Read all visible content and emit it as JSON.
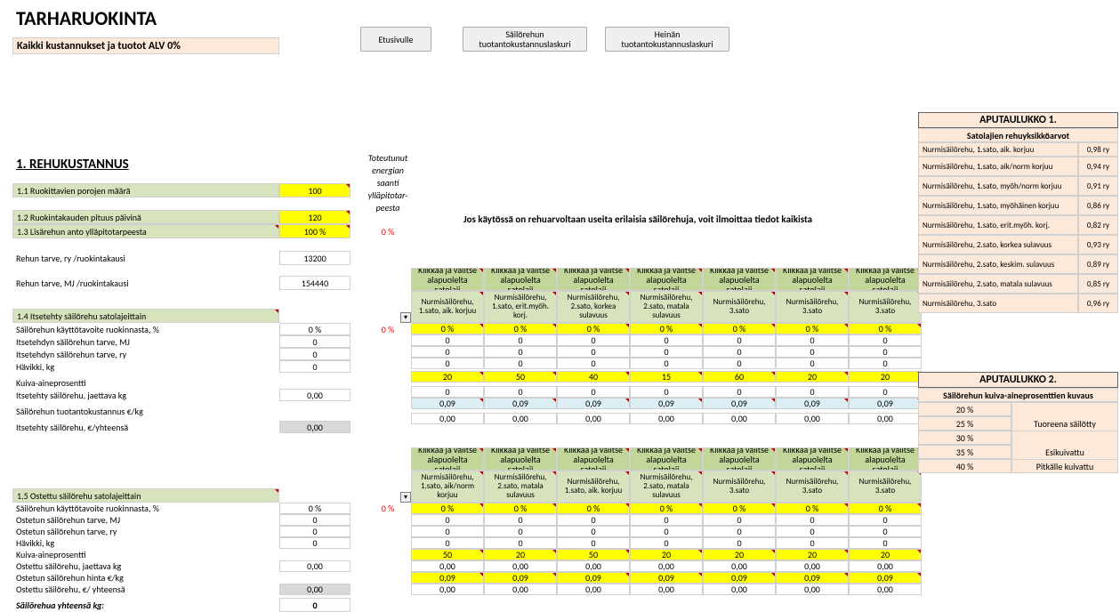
{
  "title": "TARHARUOKINTA",
  "subtitle": "Kaikki kustannukset ja tuotot ALV 0%",
  "buttons": {
    "home": "Etusivulle",
    "silage": "Säilörehun tuotantokustannuslaskuri",
    "hay": "Heinän tuotantokustannuslaskuri"
  },
  "sideNote": {
    "l1": "Toteutunut",
    "l2": "energian",
    "l3": "saanti",
    "l4": "ylläpitotar-",
    "l5": "peesta"
  },
  "section1": "1. REHUKUSTANNUS",
  "rows": {
    "r11": "1.1 Ruokittavien porojen määrä",
    "r12": "1.2 Ruokintakauden pituus päivinä",
    "r13": "1.3 Lisärehun anto ylläpitotarpeesta",
    "rtarve_ry": "Rehun tarve, ry /ruokintakausi",
    "rtarve_mj": "Rehun tarve, MJ /ruokintakausi",
    "r14": "1.4 Itsetehty säilörehu satolajeittain",
    "sk1": "Säilörehun käyttötavoite ruokinnasta, %",
    "mj1": "Itsetehdyn säilörehun tarve, MJ",
    "ry1": "Itsetehdyn säilörehun tarve, ry",
    "hav": "Hävikki, kg",
    "ka": "Kuiva-aineprosentti",
    "jak": "Itsetehty säilörehu, jaettava kg",
    "tk": "Säilörehun tuotantokustannus €/kg",
    "yht": "Itsetehty säilörehu, €/yhteensä",
    "r15": "1.5 Ostettu säilörehu satolajeittain",
    "sk2": "Säilörehun käyttötavoite ruokinnasta, %",
    "mj2": "Ostetun säilörehun tarve, MJ",
    "ry2": "Ostetun säilörehun tarve, ry",
    "hav2": "Hävikki, kg",
    "ka2": "Kuiva-aineprosentti",
    "jak2": "Ostettu säilörehu, jaettava kg",
    "hinta": "Ostetun säilörehun hinta €/kg",
    "yht2": "Ostettu säilörehu, €/ yhteensä",
    "total": "Säilörehua yhteensä kg:"
  },
  "vals": {
    "r11": "100",
    "r12": "120",
    "r13": "100 %",
    "pct0a": "0 %",
    "rtarve_ry": "13200",
    "rtarve_mj": "154440",
    "sk1": "0 %",
    "pct0b": "0 %",
    "zero": "0",
    "dec0": "0,00",
    "sk2": "0 %",
    "pct0c": "0 %",
    "total": "0"
  },
  "note": "Jos käytössä on rehuarvoltaan useita erilaisia säilörehuja, voit ilmoittaa tiedot kaikista",
  "colHead": "Klikkaa ja valitse alapuolelta satolaji",
  "silageHeads1": [
    "Nurmisäilörehu, 1.sato, aik. korjuu",
    "Nurmisäilörehu, 1.sato, erit.myöh. korj.",
    "Nurmisäilörehu, 2.sato, korkea sulavuus",
    "Nurmisäilörehu, 2.sato, matala sulavuus",
    "Nurmisäilörehu, 3.sato",
    "Nurmisäilörehu, 3.sato",
    "Nurmisäilörehu, 3.sato"
  ],
  "silageHeads2": [
    "Nurmisäilörehu, 1.sato, aik/norm korjuu",
    "Nurmisäilörehu, 2.sato, matala sulavuus",
    "Nurmisäilörehu, 1.sato, aik. korjuu",
    "Nurmisäilörehu, 2.sato, matala sulavuus",
    "Nurmisäilörehu, 3.sato",
    "Nurmisäilörehu, 3.sato",
    "Nurmisäilörehu, 3.sato"
  ],
  "grid1": {
    "ka": [
      "20",
      "50",
      "40",
      "15",
      "60",
      "20",
      "20"
    ],
    "cost": [
      "0,09",
      "0,09",
      "0,09",
      "0,09",
      "0,09",
      "0,09",
      "0,09"
    ]
  },
  "grid2": {
    "ka": [
      "50",
      "20",
      "50",
      "20",
      "20",
      "20",
      "20"
    ],
    "cost": [
      "0,09",
      "0,09",
      "0,09",
      "0,09",
      "0,09",
      "0,09",
      "0,09"
    ]
  },
  "z": "0",
  "pc0": "0 %",
  "d0": "0,00",
  "apu1": {
    "title": "APUTAULUKKO 1.",
    "sub": "Satolajien rehuyksikköarvot",
    "rows": [
      [
        "Nurmisäilörehu, 1.sato, aik. korjuu",
        "0,98 ry"
      ],
      [
        "Nurmisäilörehu, 1.sato, aik/norm korjuu",
        "0,94 ry"
      ],
      [
        "Nurmisäilörehu, 1.sato, myöh/norm korjuu",
        "0,91 ry"
      ],
      [
        "Nurmisäilörehu, 1.sato, myöhäinen korjuu",
        "0,86 ry"
      ],
      [
        "Nurmisäilörehu, 1.sato, erit.myöh. korj.",
        "0,82 ry"
      ],
      [
        "Nurmisäilörehu, 2.sato, korkea sulavuus",
        "0,93 ry"
      ],
      [
        "Nurmisäilörehu, 2.sato, keskim. sulavuus",
        "0,89 ry"
      ],
      [
        "Nurmisäilörehu, 2.sato, matala sulavuus",
        "0,85 ry"
      ],
      [
        "Nurmisäilörehu, 3.sato",
        "0,96 ry"
      ]
    ]
  },
  "apu2": {
    "title": "APUTAULUKKO 2.",
    "sub": "Säilörehun kuiva-aineprosenttien kuvaus",
    "desc": {
      "tuore": "Tuoreena säilötty",
      "esi": "Esikuivattu",
      "pit": "Pitkälle kuivattu"
    },
    "pcts": [
      "20 %",
      "25 %",
      "30 %",
      "35 %",
      "40 %"
    ]
  }
}
